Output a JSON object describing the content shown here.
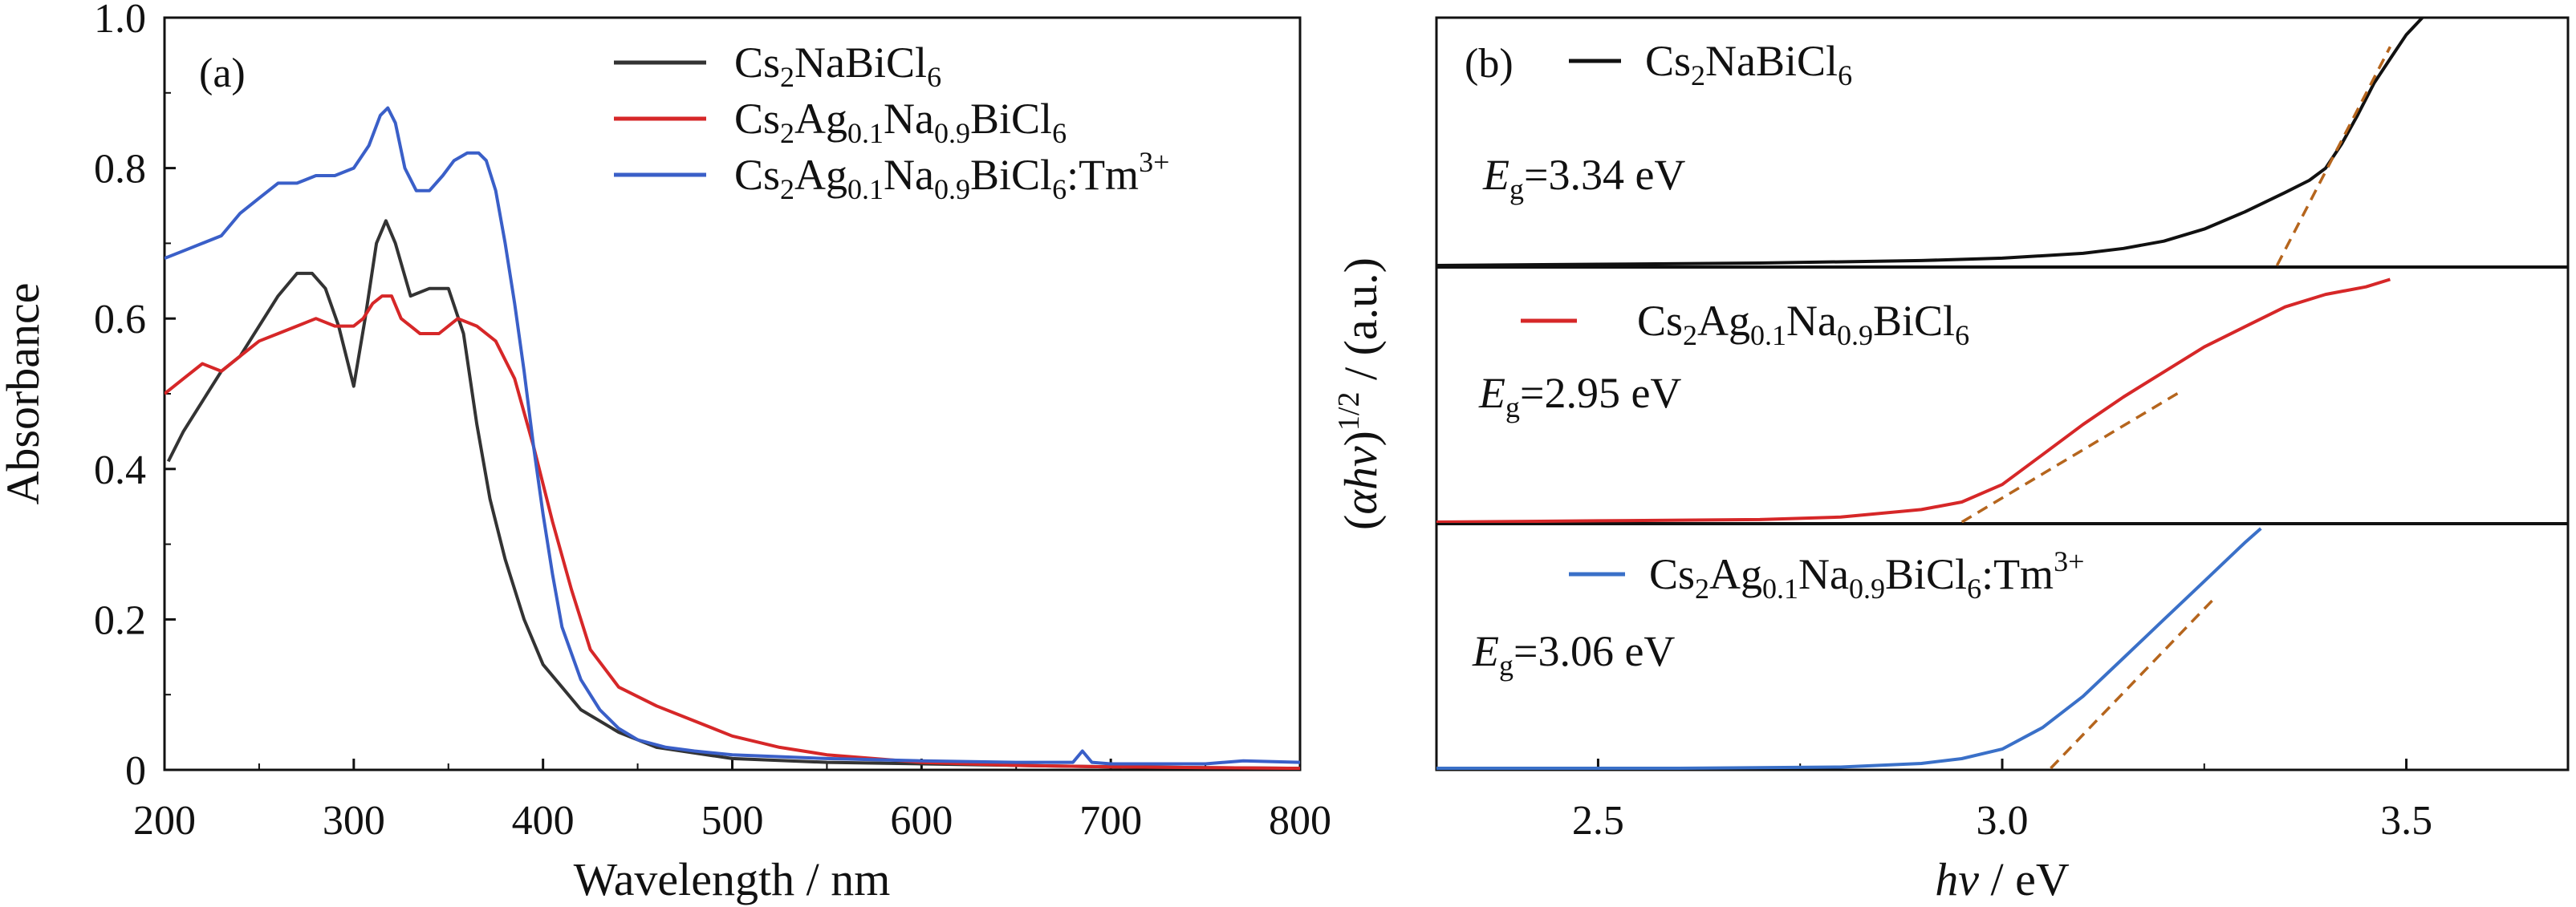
{
  "chart_data": [
    {
      "type": "line",
      "panel_label": "(a)",
      "xlabel": "Wavelength / nm",
      "ylabel": "Absorbance",
      "xlim": [
        200,
        800
      ],
      "ylim": [
        0,
        1.0
      ],
      "x_ticks": [
        "200",
        "300",
        "400",
        "500",
        "600",
        "700",
        "800"
      ],
      "y_ticks": [
        "0",
        "0.2",
        "0.4",
        "0.6",
        "0.8",
        "1.0"
      ],
      "legend_position": "top-right",
      "series": [
        {
          "name": "Cs₂NaBiCl₆",
          "color": "#333333",
          "x": [
            202,
            210,
            220,
            230,
            240,
            250,
            260,
            270,
            278,
            285,
            292,
            300,
            306,
            312,
            317,
            322,
            330,
            340,
            350,
            358,
            365,
            372,
            380,
            390,
            400,
            410,
            420,
            440,
            460,
            500,
            550,
            600,
            650,
            700,
            750,
            800
          ],
          "y": [
            0.41,
            0.45,
            0.49,
            0.53,
            0.55,
            0.59,
            0.63,
            0.66,
            0.66,
            0.64,
            0.59,
            0.51,
            0.6,
            0.7,
            0.73,
            0.7,
            0.63,
            0.64,
            0.64,
            0.58,
            0.46,
            0.36,
            0.28,
            0.2,
            0.14,
            0.11,
            0.08,
            0.05,
            0.03,
            0.015,
            0.01,
            0.008,
            0.006,
            0.004,
            0.003,
            0.002
          ]
        },
        {
          "name": "Cs₂Ag₀.₁Na₀.₉BiCl₆",
          "color": "#d62728",
          "x": [
            200,
            210,
            220,
            230,
            240,
            250,
            260,
            270,
            280,
            290,
            300,
            305,
            310,
            315,
            320,
            325,
            335,
            345,
            355,
            365,
            375,
            385,
            395,
            405,
            415,
            425,
            440,
            460,
            480,
            500,
            525,
            550,
            600,
            650,
            700,
            750,
            800
          ],
          "y": [
            0.5,
            0.52,
            0.54,
            0.53,
            0.55,
            0.57,
            0.58,
            0.59,
            0.6,
            0.59,
            0.59,
            0.6,
            0.62,
            0.63,
            0.63,
            0.6,
            0.58,
            0.58,
            0.6,
            0.59,
            0.57,
            0.52,
            0.43,
            0.33,
            0.24,
            0.16,
            0.11,
            0.085,
            0.065,
            0.045,
            0.03,
            0.02,
            0.01,
            0.006,
            0.004,
            0.003,
            0.002
          ]
        },
        {
          "name": "Cs₂Ag₀.₁Na₀.₉BiCl₆:Tm³⁺",
          "color": "#3a5fc8",
          "x": [
            200,
            210,
            220,
            230,
            240,
            250,
            260,
            270,
            280,
            290,
            300,
            308,
            314,
            318,
            322,
            327,
            333,
            340,
            347,
            353,
            360,
            366,
            370,
            375,
            380,
            385,
            390,
            395,
            400,
            405,
            410,
            420,
            430,
            440,
            450,
            465,
            480,
            500,
            550,
            600,
            650,
            680,
            685,
            690,
            700,
            750,
            770,
            800
          ],
          "y": [
            0.68,
            0.69,
            0.7,
            0.71,
            0.74,
            0.76,
            0.78,
            0.78,
            0.79,
            0.79,
            0.8,
            0.83,
            0.87,
            0.88,
            0.86,
            0.8,
            0.77,
            0.77,
            0.79,
            0.81,
            0.82,
            0.82,
            0.81,
            0.77,
            0.7,
            0.62,
            0.53,
            0.43,
            0.34,
            0.26,
            0.19,
            0.12,
            0.08,
            0.055,
            0.04,
            0.03,
            0.025,
            0.02,
            0.015,
            0.012,
            0.01,
            0.01,
            0.025,
            0.01,
            0.008,
            0.008,
            0.012,
            0.01
          ]
        }
      ]
    },
    {
      "type": "line",
      "panel_label": "(b)",
      "xlabel": "hν / eV",
      "ylabel": "(αhν)^1/2 / (a.u.)",
      "xlim": [
        2.3,
        3.7
      ],
      "x_ticks": [
        "2.5",
        "3.0",
        "3.5"
      ],
      "legend_position": "top of each sub-panel",
      "subpanels": [
        {
          "name": "Cs₂NaBiCl₆",
          "color": "#111111",
          "eg_label": "3.34 eV",
          "eg_value": 3.34,
          "fit": {
            "x": [
              3.34,
              3.48
            ],
            "y": [
              0.0,
              0.9
            ]
          },
          "x": [
            2.3,
            2.5,
            2.7,
            2.9,
            3.0,
            3.1,
            3.15,
            3.2,
            3.25,
            3.3,
            3.35,
            3.38,
            3.4,
            3.42,
            3.44,
            3.46,
            3.48,
            3.5,
            3.52
          ],
          "y": [
            0.0,
            0.005,
            0.01,
            0.02,
            0.03,
            0.05,
            0.07,
            0.1,
            0.15,
            0.22,
            0.3,
            0.35,
            0.4,
            0.5,
            0.62,
            0.75,
            0.85,
            0.95,
            1.02
          ]
        },
        {
          "name": "Cs₂Ag₀.₁Na₀.₉BiCl₆",
          "color": "#d62728",
          "eg_label": "2.95 eV",
          "eg_value": 2.95,
          "fit": {
            "x": [
              2.95,
              3.22
            ],
            "y": [
              0.0,
              0.52
            ]
          },
          "x": [
            2.3,
            2.5,
            2.7,
            2.8,
            2.9,
            2.95,
            3.0,
            3.05,
            3.1,
            3.15,
            3.2,
            3.25,
            3.3,
            3.35,
            3.4,
            3.45,
            3.48
          ],
          "y": [
            0.0,
            0.005,
            0.01,
            0.02,
            0.05,
            0.08,
            0.15,
            0.27,
            0.39,
            0.5,
            0.6,
            0.7,
            0.78,
            0.86,
            0.91,
            0.94,
            0.97
          ]
        },
        {
          "name": "Cs₂Ag₀.₁Na₀.₉BiCl₆:Tm³⁺",
          "color": "#3a70c8",
          "eg_label": "3.06 eV",
          "eg_value": 3.06,
          "fit": {
            "x": [
              3.06,
              3.26
            ],
            "y": [
              0.0,
              0.7
            ]
          },
          "x": [
            2.3,
            2.6,
            2.8,
            2.9,
            2.95,
            3.0,
            3.05,
            3.1,
            3.15,
            3.2,
            3.25,
            3.3,
            3.32
          ],
          "y": [
            0.0,
            0.0,
            0.005,
            0.02,
            0.04,
            0.08,
            0.17,
            0.3,
            0.46,
            0.62,
            0.78,
            0.94,
            1.0
          ]
        }
      ]
    }
  ]
}
